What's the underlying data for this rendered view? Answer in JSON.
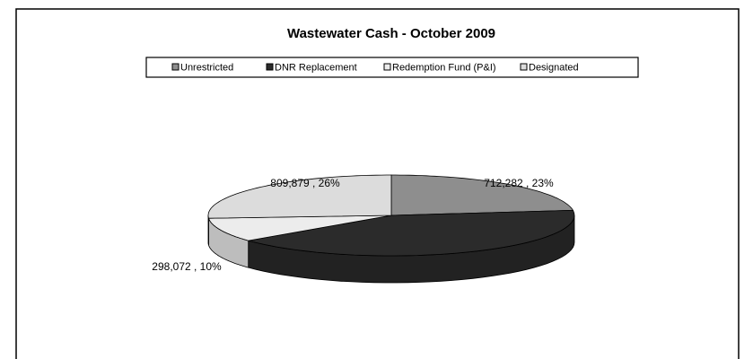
{
  "chart_data": {
    "type": "pie3d",
    "title": "Wastewater Cash - October 2009",
    "categories": [
      "Unrestricted",
      "DNR Replacement",
      "Redemption Fund (P&I)",
      "Designated"
    ],
    "values": [
      712282,
      1280000,
      298072,
      809879
    ],
    "value_labels": [
      "712,282 , 23%",
      null,
      "298,072 , 10%",
      "809,879 , 26%"
    ],
    "colors": [
      "#8e8e8e",
      "#2b2b2b",
      "#ececec",
      "#dcdcdc"
    ],
    "legend": "top"
  }
}
